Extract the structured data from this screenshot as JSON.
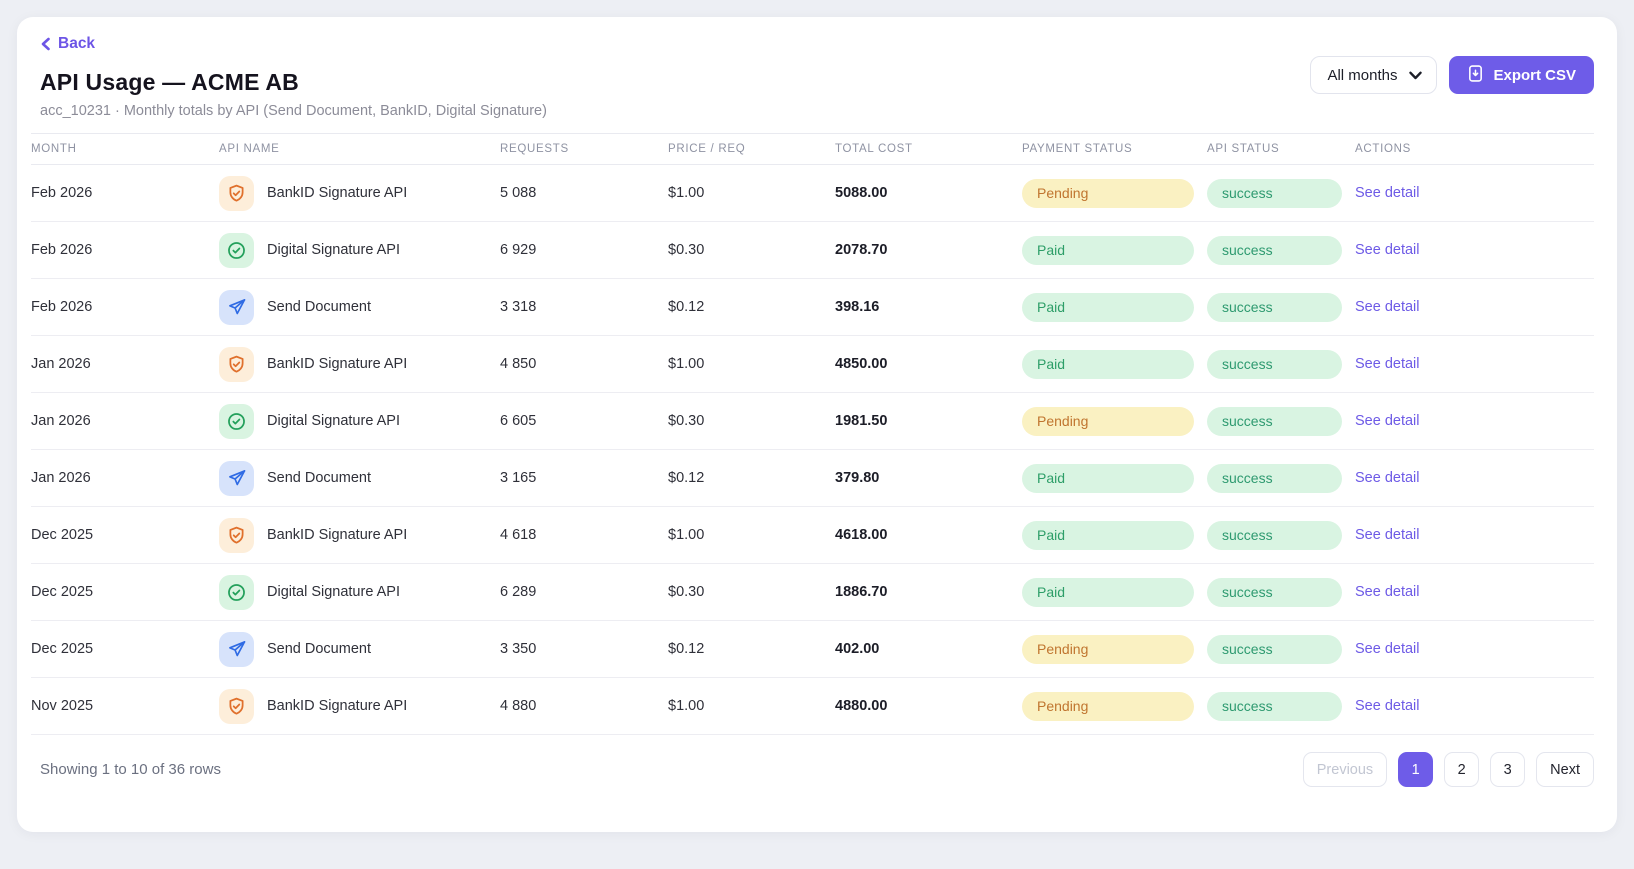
{
  "page": {
    "back_label": "Back",
    "title": "API Usage — ACME AB",
    "subtitle": "acc_10231 · Monthly totals by API (Send Document, BankID, Digital Signature)"
  },
  "controls": {
    "months_filter_value": "All months",
    "export_button_label": "Export CSV"
  },
  "table": {
    "columns": [
      "MONTH",
      "API NAME",
      "REQUESTS",
      "PRICE / REQ",
      "TOTAL COST",
      "PAYMENT STATUS",
      "API STATUS",
      "ACTIONS"
    ],
    "action_label": "See detail",
    "rows": [
      {
        "month": "Feb 2026",
        "api_name": "BankID Signature API",
        "icon": "shield-check-icon",
        "requests": "5 088",
        "price_per_req": "$1.00",
        "total_cost": "5088.00",
        "payment_status": "Pending",
        "api_status": "success"
      },
      {
        "month": "Feb 2026",
        "api_name": "Digital Signature API",
        "icon": "circle-check-icon",
        "requests": "6 929",
        "price_per_req": "$0.30",
        "total_cost": "2078.70",
        "payment_status": "Paid",
        "api_status": "success"
      },
      {
        "month": "Feb 2026",
        "api_name": "Send Document",
        "icon": "paper-plane-icon",
        "requests": "3 318",
        "price_per_req": "$0.12",
        "total_cost": "398.16",
        "payment_status": "Paid",
        "api_status": "success"
      },
      {
        "month": "Jan 2026",
        "api_name": "BankID Signature API",
        "icon": "shield-check-icon",
        "requests": "4 850",
        "price_per_req": "$1.00",
        "total_cost": "4850.00",
        "payment_status": "Paid",
        "api_status": "success"
      },
      {
        "month": "Jan 2026",
        "api_name": "Digital Signature API",
        "icon": "circle-check-icon",
        "requests": "6 605",
        "price_per_req": "$0.30",
        "total_cost": "1981.50",
        "payment_status": "Pending",
        "api_status": "success"
      },
      {
        "month": "Jan 2026",
        "api_name": "Send Document",
        "icon": "paper-plane-icon",
        "requests": "3 165",
        "price_per_req": "$0.12",
        "total_cost": "379.80",
        "payment_status": "Paid",
        "api_status": "success"
      },
      {
        "month": "Dec 2025",
        "api_name": "BankID Signature API",
        "icon": "shield-check-icon",
        "requests": "4 618",
        "price_per_req": "$1.00",
        "total_cost": "4618.00",
        "payment_status": "Paid",
        "api_status": "success"
      },
      {
        "month": "Dec 2025",
        "api_name": "Digital Signature API",
        "icon": "circle-check-icon",
        "requests": "6 289",
        "price_per_req": "$0.30",
        "total_cost": "1886.70",
        "payment_status": "Paid",
        "api_status": "success"
      },
      {
        "month": "Dec 2025",
        "api_name": "Send Document",
        "icon": "paper-plane-icon",
        "requests": "3 350",
        "price_per_req": "$0.12",
        "total_cost": "402.00",
        "payment_status": "Pending",
        "api_status": "success"
      },
      {
        "month": "Nov 2025",
        "api_name": "BankID Signature API",
        "icon": "shield-check-icon",
        "requests": "4 880",
        "price_per_req": "$1.00",
        "total_cost": "4880.00",
        "payment_status": "Pending",
        "api_status": "success"
      }
    ]
  },
  "footer": {
    "summary": "Showing 1 to 10 of 36 rows",
    "pagination": {
      "previous_label": "Previous",
      "pages": [
        "1",
        "2",
        "3"
      ],
      "active_page": "1",
      "next_label": "Next"
    }
  },
  "colors": {
    "accent": "#6e5ce8",
    "link": "#6d5ae6",
    "pending_bg": "#faf1c2",
    "pending_text": "#c0752f",
    "paid_bg": "#d9f4e2",
    "paid_text": "#2d9e68",
    "bankid_icon_color": "#e0702c",
    "bankid_icon_bg": "#fdeeda",
    "digital_icon_color": "#23a05b",
    "digital_icon_bg": "#d9f4e1",
    "send_icon_color": "#2f6be4",
    "send_icon_bg": "#d7e3fb"
  }
}
